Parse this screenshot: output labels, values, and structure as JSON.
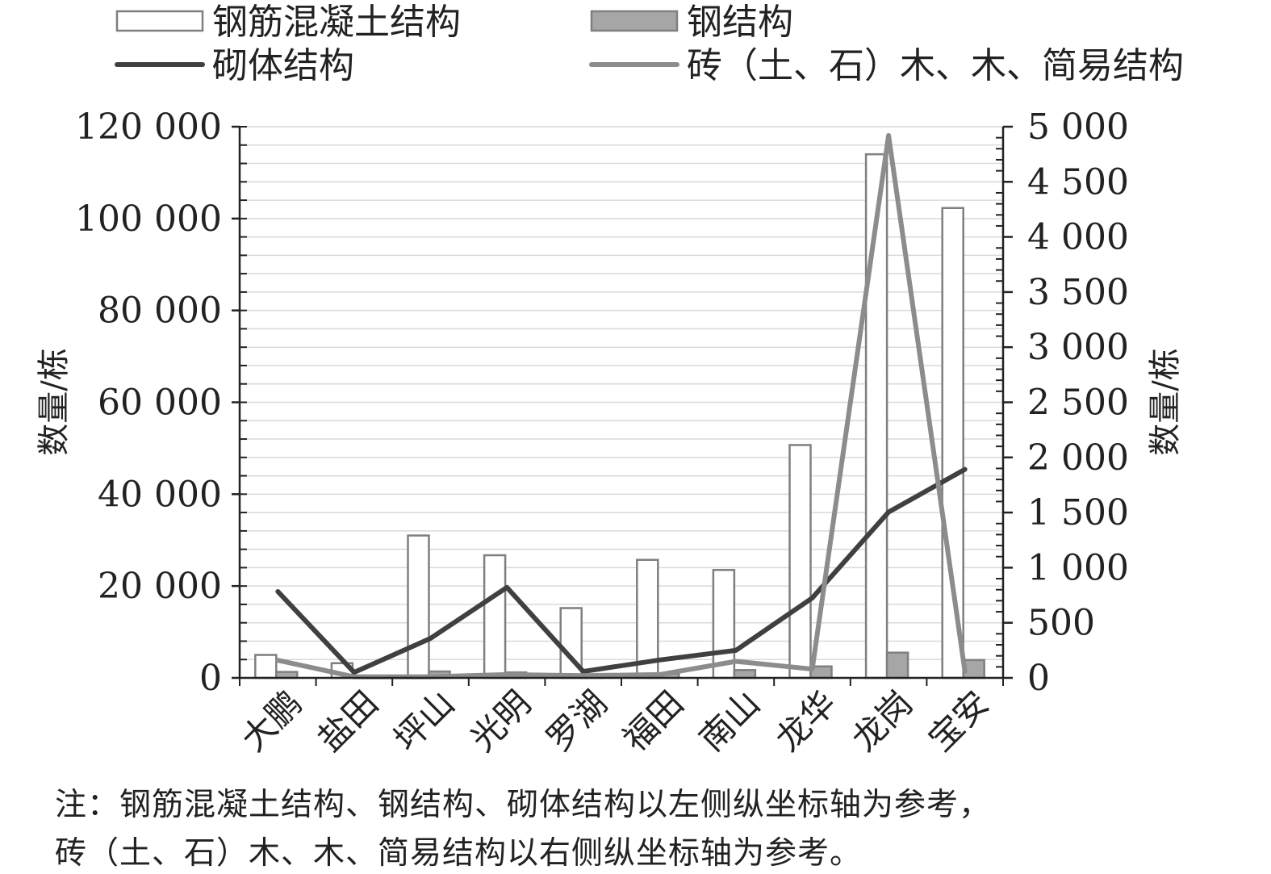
{
  "chart_data": {
    "type": "bar",
    "categories": [
      "大鹏",
      "盐田",
      "坪山",
      "光明",
      "罗湖",
      "福田",
      "南山",
      "龙华",
      "龙岗",
      "宝安"
    ],
    "series": [
      {
        "name": "钢筋混凝土结构",
        "kind": "bar",
        "axis": "left",
        "color": "#ffffff",
        "stroke": "#7f7f7f",
        "values": [
          5000,
          3200,
          31000,
          26700,
          15200,
          25700,
          23500,
          50700,
          114000,
          102300
        ]
      },
      {
        "name": "钢结构",
        "kind": "bar",
        "axis": "left",
        "color": "#a6a6a6",
        "stroke": "#7f7f7f",
        "values": [
          1300,
          200,
          1400,
          1200,
          300,
          900,
          1700,
          2500,
          5500,
          3900
        ]
      },
      {
        "name": "砌体结构",
        "kind": "line",
        "axis": "left",
        "color": "#404040",
        "values": [
          18800,
          1200,
          8600,
          19700,
          1400,
          3900,
          6000,
          17400,
          36100,
          45400
        ]
      },
      {
        "name": "砖（土、石）木、木、简易结构",
        "kind": "line",
        "axis": "right",
        "color": "#8c8c8c",
        "values": [
          160,
          10,
          10,
          30,
          20,
          30,
          150,
          80,
          4920,
          60
        ]
      }
    ],
    "ylabel": "数量/栋",
    "y2label": "数量/栋",
    "ylim": [
      0,
      120000
    ],
    "y2lim": [
      0,
      5000
    ],
    "yticks": [
      0,
      20000,
      40000,
      60000,
      80000,
      100000,
      120000
    ],
    "y2ticks": [
      0,
      500,
      1000,
      1500,
      2000,
      2500,
      3000,
      3500,
      4000,
      4500,
      5000
    ],
    "ytick_labels": [
      "0",
      "20 000",
      "40 000",
      "60 000",
      "80 000",
      "100 000",
      "120 000"
    ],
    "y2tick_labels": [
      "0",
      "500",
      "1 000",
      "1 500",
      "2 000",
      "2 500",
      "3 000",
      "3 500",
      "4 000",
      "4 500",
      "5 000"
    ],
    "grid": true,
    "legend_position": "top"
  },
  "note": {
    "line1": "注：钢筋混凝土结构、钢结构、砌体结构以左侧纵坐标轴为参考，",
    "line2": "砖（土、石）木、木、简易结构以右侧纵坐标轴为参考。"
  },
  "colors": {
    "axis": "#222222",
    "grid": "#d9d9d9",
    "bar_stroke": "#7f7f7f"
  }
}
